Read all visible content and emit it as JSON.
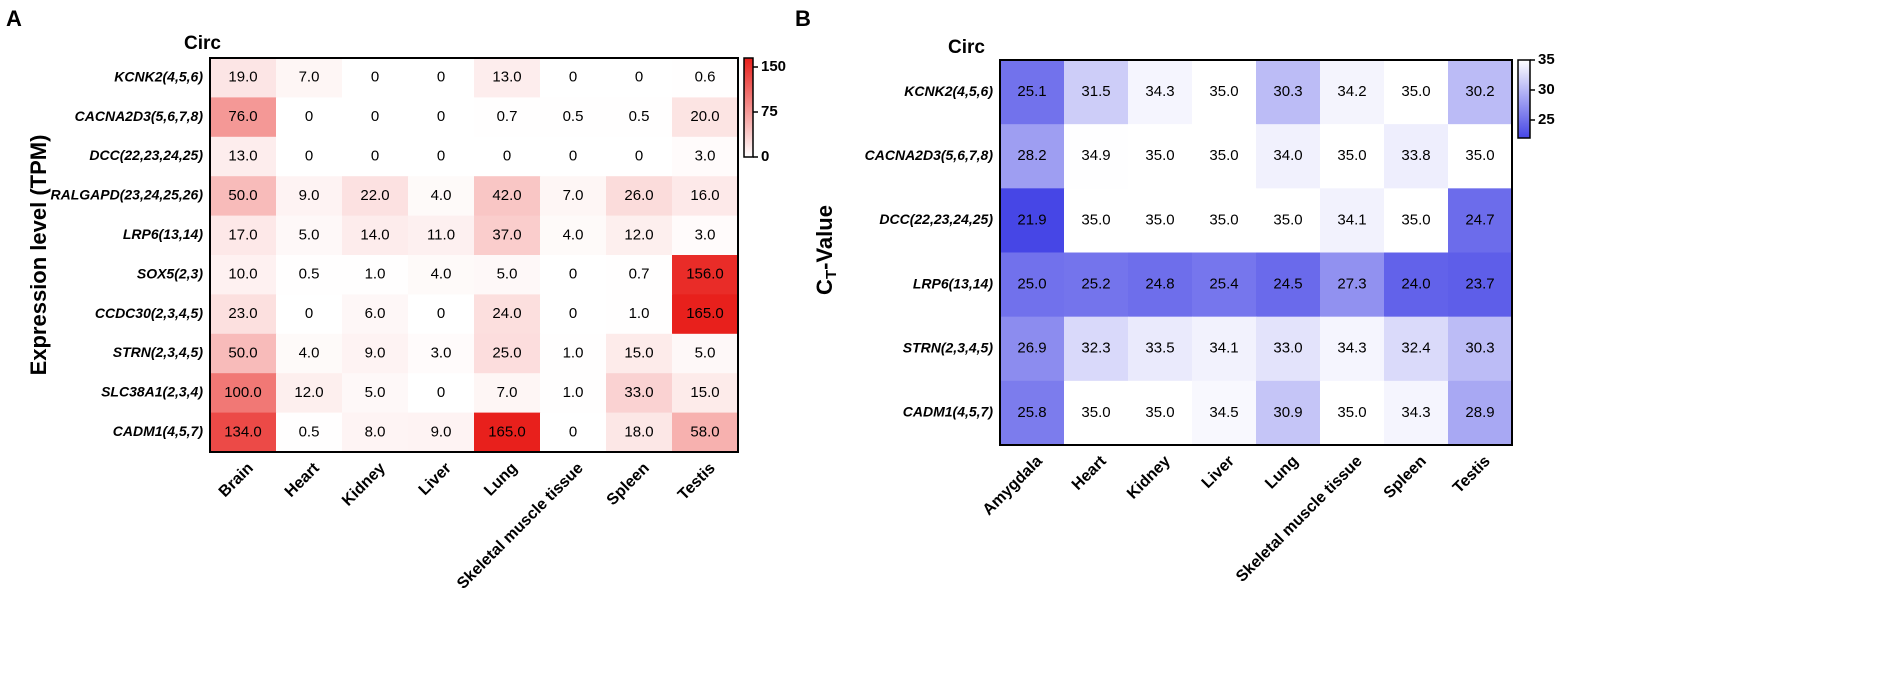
{
  "chart_data": [
    {
      "type": "heatmap",
      "panel_label": "A",
      "row_header": "Circ",
      "ylabel": [
        "Expression level (TPM)"
      ],
      "rows": [
        "KCNK2(4,5,6)",
        "CACNA2D3(5,6,7,8)",
        "DCC(22,23,24,25)",
        "RALGAPD(23,24,25,26)",
        "LRP6(13,14)",
        "SOX5(2,3)",
        "CCDC30(2,3,4,5)",
        "STRN(2,3,4,5)",
        "SLC38A1(2,3,4)",
        "CADM1(4,5,7)"
      ],
      "categories": [
        "Brain",
        "Heart",
        "Kidney",
        "Liver",
        "Lung",
        "Skeletal muscle tissue",
        "Spleen",
        "Testis"
      ],
      "values": [
        [
          19,
          7,
          0,
          0,
          13,
          0,
          0,
          0.6
        ],
        [
          76,
          0,
          0,
          0,
          0.7,
          0.5,
          0.5,
          20
        ],
        [
          13,
          0,
          0,
          0,
          0,
          0,
          0,
          3
        ],
        [
          50,
          9,
          22,
          4,
          42,
          7,
          26,
          16
        ],
        [
          17,
          5,
          14,
          11,
          37,
          4,
          12,
          3
        ],
        [
          10,
          0.5,
          1,
          4,
          5,
          0,
          0.7,
          156
        ],
        [
          23,
          0,
          6,
          0,
          24,
          0,
          1,
          165
        ],
        [
          50,
          4,
          9,
          3,
          25,
          1,
          15,
          5
        ],
        [
          100,
          12,
          5,
          0,
          7,
          1,
          33,
          15
        ],
        [
          134,
          0.5,
          8,
          9,
          165,
          0,
          18,
          58
        ]
      ],
      "value_labels": [
        [
          "19.0",
          "7.0",
          "0",
          "0",
          "13.0",
          "0",
          "0",
          "0.6"
        ],
        [
          "76.0",
          "0",
          "0",
          "0",
          "0.7",
          "0.5",
          "0.5",
          "20.0"
        ],
        [
          "13.0",
          "0",
          "0",
          "0",
          "0",
          "0",
          "0",
          "3.0"
        ],
        [
          "50.0",
          "9.0",
          "22.0",
          "4.0",
          "42.0",
          "7.0",
          "26.0",
          "16.0"
        ],
        [
          "17.0",
          "5.0",
          "14.0",
          "11.0",
          "37.0",
          "4.0",
          "12.0",
          "3.0"
        ],
        [
          "10.0",
          "0.5",
          "1.0",
          "4.0",
          "5.0",
          "0",
          "0.7",
          "156.0"
        ],
        [
          "23.0",
          "0",
          "6.0",
          "0",
          "24.0",
          "0",
          "1.0",
          "165.0"
        ],
        [
          "50.0",
          "4.0",
          "9.0",
          "3.0",
          "25.0",
          "1.0",
          "15.0",
          "5.0"
        ],
        [
          "100.0",
          "12.0",
          "5.0",
          "0",
          "7.0",
          "1.0",
          "33.0",
          "15.0"
        ],
        [
          "134.0",
          "0.5",
          "8.0",
          "9.0",
          "165.0",
          "0",
          "18.0",
          "58.0"
        ]
      ],
      "zlim": [
        0,
        165
      ],
      "zticks": [
        0,
        75,
        150
      ],
      "colors": [
        "#ffffff",
        "#e8201c"
      ]
    },
    {
      "type": "heatmap",
      "panel_label": "B",
      "row_header": "Circ",
      "ylabel": [
        "C",
        "T",
        "-Value"
      ],
      "rows": [
        "KCNK2(4,5,6)",
        "CACNA2D3(5,6,7,8)",
        "DCC(22,23,24,25)",
        "LRP6(13,14)",
        "STRN(2,3,4,5)",
        "CADM1(4,5,7)"
      ],
      "categories": [
        "Amygdala",
        "Heart",
        "Kidney",
        "Liver",
        "Lung",
        "Skeletal muscle tissue",
        "Spleen",
        "Testis"
      ],
      "values": [
        [
          25.1,
          31.5,
          34.3,
          35,
          30.3,
          34.2,
          35,
          30.2
        ],
        [
          28.2,
          34.9,
          35,
          35,
          34,
          35,
          33.8,
          35
        ],
        [
          21.9,
          35,
          35,
          35,
          35,
          34.1,
          35,
          24.7
        ],
        [
          25,
          25.2,
          24.8,
          25.4,
          24.5,
          27.3,
          24,
          23.7
        ],
        [
          26.9,
          32.3,
          33.5,
          34.1,
          33,
          34.3,
          32.4,
          30.3
        ],
        [
          25.8,
          35,
          35,
          34.5,
          30.9,
          35,
          34.3,
          28.9
        ]
      ],
      "value_labels": [
        [
          "25.1",
          "31.5",
          "34.3",
          "35.0",
          "30.3",
          "34.2",
          "35.0",
          "30.2"
        ],
        [
          "28.2",
          "34.9",
          "35.0",
          "35.0",
          "34.0",
          "35.0",
          "33.8",
          "35.0"
        ],
        [
          "21.9",
          "35.0",
          "35.0",
          "35.0",
          "35.0",
          "34.1",
          "35.0",
          "24.7"
        ],
        [
          "25.0",
          "25.2",
          "24.8",
          "25.4",
          "24.5",
          "27.3",
          "24.0",
          "23.7"
        ],
        [
          "26.9",
          "32.3",
          "33.5",
          "34.1",
          "33.0",
          "34.3",
          "32.4",
          "30.3"
        ],
        [
          "25.8",
          "35.0",
          "35.0",
          "34.5",
          "30.9",
          "35.0",
          "34.3",
          "28.9"
        ]
      ],
      "zlim": [
        22,
        35
      ],
      "zticks": [
        25,
        30,
        35
      ],
      "colors": [
        "#4646e6",
        "#ffffff"
      ]
    }
  ]
}
